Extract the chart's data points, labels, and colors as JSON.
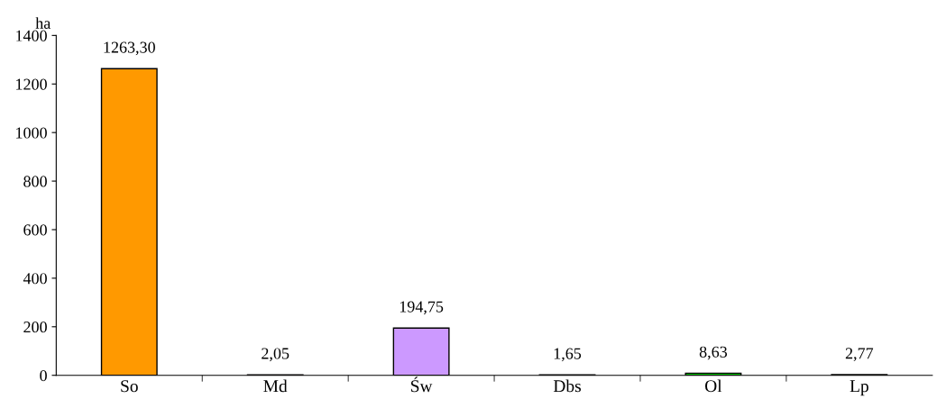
{
  "chart_data": {
    "type": "bar",
    "ylabel": "ha",
    "categories": [
      "So",
      "Md",
      "Św",
      "Dbs",
      "Ol",
      "Lp"
    ],
    "values": [
      1263.3,
      2.05,
      194.75,
      1.65,
      8.63,
      2.77
    ],
    "value_labels": [
      "1263,30",
      "2,05",
      "194,75",
      "1,65",
      "8,63",
      "2,77"
    ],
    "colors": [
      "#ff9900",
      "#cc0000",
      "#cc99ff",
      "#808080",
      "#00cc00",
      "#cccc77"
    ],
    "ylim": [
      0,
      1400
    ],
    "yticks": [
      0,
      200,
      400,
      600,
      800,
      1000,
      1200,
      1400
    ],
    "grid": false
  }
}
